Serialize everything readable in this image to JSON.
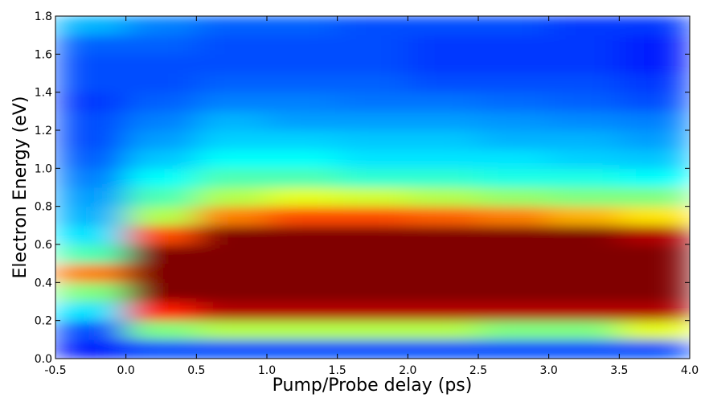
{
  "chart_data": {
    "type": "heatmap",
    "xlabel": "Pump/Probe delay (ps)",
    "ylabel": "Electron Energy (eV)",
    "xlim": [
      -0.5,
      4.0
    ],
    "ylim": [
      0,
      1.8
    ],
    "xticks": [
      -0.5,
      {
        "value": 0,
        "label": "0.0"
      },
      0.5,
      {
        "value": 1,
        "label": "1.0"
      },
      1.5,
      {
        "value": 2,
        "label": "2.0"
      },
      2.5,
      {
        "value": 3,
        "label": "3.0"
      },
      3.5,
      {
        "value": 4,
        "label": "4.0"
      }
    ],
    "yticks": [
      {
        "value": 0,
        "label": "0.0"
      },
      0.2,
      0.4,
      0.6,
      0.8,
      {
        "value": 1,
        "label": "1.0"
      },
      1.2,
      1.4,
      1.6,
      1.8
    ],
    "colormap": "jet",
    "xbins": [
      -0.5,
      0,
      0.5,
      1,
      1.5,
      2,
      2.5,
      3,
      3.5,
      4
    ],
    "ybins": [
      0,
      0.1,
      0.2,
      0.3,
      0.4,
      0.5,
      0.6,
      0.7,
      0.8,
      0.9,
      1,
      1.1,
      1.2,
      1.3,
      1.4,
      1.5,
      1.6,
      1.7,
      1.8
    ],
    "z": [
      [
        0.15,
        0.2,
        0.2,
        0.2,
        0.2,
        0.2,
        0.2,
        0.2,
        0.2
      ],
      [
        0.2,
        0.5,
        0.55,
        0.55,
        0.55,
        0.55,
        0.5,
        0.5,
        0.6
      ],
      [
        0.35,
        0.85,
        0.95,
        0.95,
        0.95,
        0.95,
        0.95,
        0.95,
        0.95
      ],
      [
        0.5,
        1,
        1,
        1,
        1,
        1,
        1,
        1,
        1
      ],
      [
        0.75,
        1,
        1,
        1,
        1,
        1,
        1,
        1,
        1
      ],
      [
        0.45,
        1,
        1,
        1,
        1,
        1,
        1,
        1,
        1
      ],
      [
        0.35,
        0.8,
        1,
        1,
        1,
        1,
        1,
        1,
        0.95
      ],
      [
        0.3,
        0.55,
        0.75,
        0.8,
        0.8,
        0.78,
        0.75,
        0.7,
        0.65
      ],
      [
        0.28,
        0.45,
        0.55,
        0.6,
        0.58,
        0.55,
        0.52,
        0.5,
        0.5
      ],
      [
        0.25,
        0.38,
        0.45,
        0.45,
        0.42,
        0.42,
        0.4,
        0.4,
        0.38
      ],
      [
        0.22,
        0.32,
        0.38,
        0.38,
        0.35,
        0.35,
        0.35,
        0.33,
        0.32
      ],
      [
        0.2,
        0.28,
        0.33,
        0.33,
        0.32,
        0.32,
        0.3,
        0.3,
        0.28
      ],
      [
        0.2,
        0.25,
        0.3,
        0.28,
        0.28,
        0.28,
        0.27,
        0.26,
        0.25
      ],
      [
        0.18,
        0.22,
        0.25,
        0.25,
        0.24,
        0.24,
        0.23,
        0.22,
        0.2
      ],
      [
        0.2,
        0.2,
        0.22,
        0.22,
        0.22,
        0.2,
        0.2,
        0.2,
        0.18
      ],
      [
        0.2,
        0.2,
        0.2,
        0.2,
        0.2,
        0.18,
        0.18,
        0.18,
        0.15
      ],
      [
        0.22,
        0.22,
        0.2,
        0.2,
        0.2,
        0.18,
        0.18,
        0.18,
        0.15
      ],
      [
        0.3,
        0.25,
        0.22,
        0.22,
        0.2,
        0.2,
        0.2,
        0.18,
        0.18
      ]
    ]
  }
}
